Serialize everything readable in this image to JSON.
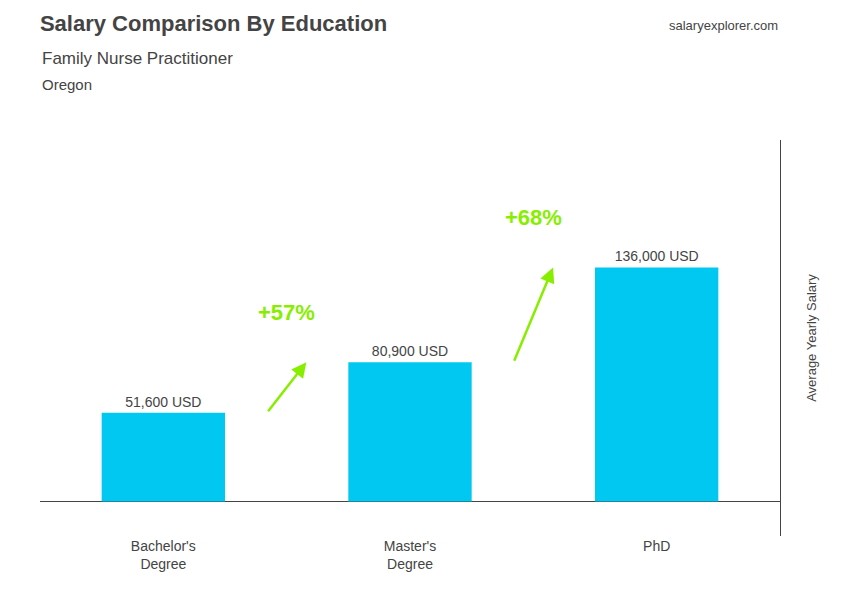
{
  "chart_data": {
    "type": "bar",
    "title": "Salary Comparison By Education",
    "subtitle": "Family Nurse Practitioner",
    "location": "Oregon",
    "source": "salaryexplorer.com",
    "ylabel": "Average Yearly Salary",
    "categories": [
      "Bachelor's\nDegree",
      "Master's\nDegree",
      "PhD"
    ],
    "values": [
      51600,
      80900,
      136000
    ],
    "value_labels": [
      "51,600 USD",
      "80,900 USD",
      "136,000 USD"
    ],
    "data_labels": true,
    "color": "#00c8f0",
    "ylim": [
      -20000,
      210000
    ],
    "tick_labels": "x",
    "grid": false,
    "annotations": [
      {
        "text": "+57%",
        "value": 57,
        "from": "Bachelor's\nDegree",
        "to": "Master's\nDegree",
        "color": "#88ee00"
      },
      {
        "text": "+68%",
        "value": 68,
        "from": "Master's\nDegree",
        "to": "PhD",
        "color": "#88ee00"
      }
    ]
  }
}
